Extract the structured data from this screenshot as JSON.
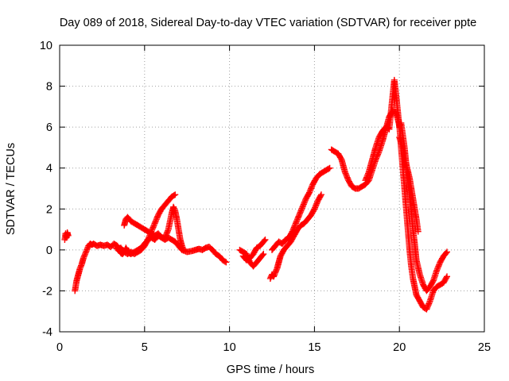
{
  "colors": {
    "series": "#ff0000",
    "grid": "#a0a0a0",
    "axis": "#000000",
    "background": "#ffffff"
  },
  "chart_data": {
    "type": "scatter",
    "title": "Day 089 of 2018, Sidereal Day-to-day VTEC variation (SDTVAR) for receiver ppte",
    "xlabel": "GPS time / hours",
    "ylabel": "SDTVAR / TECUs",
    "xlim": [
      0,
      25
    ],
    "ylim": [
      -4,
      10
    ],
    "xticks": [
      0,
      5,
      10,
      15,
      20,
      25
    ],
    "yticks": [
      -4,
      -2,
      0,
      2,
      4,
      6,
      8,
      10
    ],
    "grid": true,
    "marker": "plus",
    "series": [
      {
        "name": "SDTVAR",
        "segments": [
          [
            [
              0.3,
              0.5
            ],
            [
              0.35,
              0.8
            ],
            [
              0.4,
              0.6
            ],
            [
              0.45,
              0.85
            ],
            [
              0.5,
              0.7
            ]
          ],
          [
            [
              0.9,
              -2.0
            ],
            [
              1.0,
              -1.5
            ],
            [
              1.1,
              -1.2
            ],
            [
              1.2,
              -0.9
            ],
            [
              1.3,
              -0.7
            ],
            [
              1.4,
              -0.4
            ],
            [
              1.5,
              -0.2
            ],
            [
              1.6,
              0.0
            ],
            [
              1.7,
              0.2
            ],
            [
              1.8,
              0.3
            ],
            [
              1.9,
              0.25
            ],
            [
              2.0,
              0.3
            ],
            [
              2.2,
              0.2
            ],
            [
              2.4,
              0.25
            ],
            [
              2.6,
              0.2
            ],
            [
              2.8,
              0.25
            ],
            [
              3.0,
              0.15
            ],
            [
              3.2,
              0.3
            ],
            [
              3.4,
              0.2
            ],
            [
              3.5,
              0.0
            ],
            [
              3.6,
              -0.15
            ],
            [
              3.7,
              -0.2
            ],
            [
              3.8,
              -0.1
            ],
            [
              3.9,
              0.1
            ],
            [
              4.0,
              -0.05
            ],
            [
              4.1,
              -0.15
            ],
            [
              4.2,
              -0.2
            ],
            [
              4.4,
              -0.1
            ],
            [
              4.6,
              0.0
            ],
            [
              4.8,
              0.1
            ],
            [
              5.0,
              0.3
            ],
            [
              5.2,
              0.5
            ],
            [
              5.4,
              0.6
            ],
            [
              5.6,
              0.5
            ],
            [
              5.8,
              0.7
            ],
            [
              6.0,
              0.6
            ],
            [
              6.2,
              0.5
            ],
            [
              6.4,
              0.6
            ],
            [
              6.6,
              0.5
            ],
            [
              6.8,
              0.4
            ],
            [
              7.0,
              0.2
            ],
            [
              7.2,
              0.0
            ],
            [
              7.5,
              -0.1
            ],
            [
              7.8,
              -0.05
            ],
            [
              8.0,
              0.0
            ],
            [
              8.2,
              0.05
            ],
            [
              8.4,
              0.0
            ],
            [
              8.6,
              0.1
            ],
            [
              8.8,
              0.15
            ],
            [
              9.0,
              0.0
            ],
            [
              9.2,
              -0.2
            ],
            [
              9.4,
              -0.3
            ],
            [
              9.6,
              -0.5
            ],
            [
              9.8,
              -0.6
            ]
          ],
          [
            [
              3.3,
              0.1
            ],
            [
              3.4,
              0.05
            ],
            [
              3.6,
              0.1
            ],
            [
              3.8,
              -0.1
            ],
            [
              4.0,
              -0.2
            ],
            [
              4.2,
              -0.1
            ],
            [
              4.4,
              -0.2
            ],
            [
              4.6,
              -0.1
            ],
            [
              4.8,
              0.0
            ],
            [
              5.0,
              0.2
            ],
            [
              5.2,
              0.5
            ],
            [
              5.4,
              0.9
            ],
            [
              5.6,
              1.3
            ],
            [
              5.8,
              1.7
            ],
            [
              6.0,
              2.0
            ],
            [
              6.2,
              2.2
            ],
            [
              6.4,
              2.4
            ],
            [
              6.6,
              2.6
            ],
            [
              6.8,
              2.7
            ]
          ],
          [
            [
              3.8,
              1.2
            ],
            [
              3.9,
              1.5
            ],
            [
              4.0,
              1.6
            ],
            [
              4.2,
              1.4
            ],
            [
              4.4,
              1.3
            ],
            [
              4.6,
              1.2
            ],
            [
              4.8,
              1.1
            ],
            [
              5.0,
              1.0
            ],
            [
              5.2,
              0.9
            ],
            [
              5.4,
              0.8
            ],
            [
              5.6,
              0.7
            ],
            [
              5.8,
              0.8
            ],
            [
              6.0,
              0.6
            ],
            [
              6.2,
              0.6
            ],
            [
              6.4,
              1.0
            ],
            [
              6.6,
              1.8
            ],
            [
              6.7,
              2.1
            ],
            [
              6.8,
              1.9
            ],
            [
              6.9,
              1.5
            ],
            [
              7.0,
              1.0
            ],
            [
              7.1,
              0.5
            ],
            [
              7.2,
              0.2
            ],
            [
              7.3,
              0.0
            ]
          ],
          [
            [
              10.6,
              0.0
            ],
            [
              10.8,
              -0.1
            ],
            [
              11.0,
              -0.2
            ],
            [
              11.2,
              -0.6
            ],
            [
              11.4,
              -0.8
            ],
            [
              11.6,
              -0.6
            ],
            [
              11.8,
              -0.4
            ],
            [
              12.0,
              -0.2
            ]
          ],
          [
            [
              10.8,
              -0.3
            ],
            [
              11.0,
              -0.5
            ],
            [
              11.2,
              -0.4
            ],
            [
              11.4,
              -0.2
            ],
            [
              11.6,
              0.1
            ],
            [
              11.8,
              0.2
            ],
            [
              12.0,
              0.4
            ],
            [
              12.1,
              0.5
            ]
          ],
          [
            [
              12.4,
              -1.4
            ],
            [
              12.5,
              -1.2
            ],
            [
              12.6,
              -1.3
            ],
            [
              12.7,
              -1.1
            ],
            [
              12.8,
              -0.9
            ],
            [
              12.9,
              -0.6
            ],
            [
              13.0,
              -0.3
            ],
            [
              13.2,
              0.0
            ],
            [
              13.4,
              0.2
            ],
            [
              13.6,
              0.4
            ],
            [
              13.8,
              0.7
            ],
            [
              14.0,
              1.0
            ],
            [
              14.2,
              1.2
            ],
            [
              14.4,
              1.3
            ],
            [
              14.6,
              1.5
            ],
            [
              14.8,
              1.7
            ],
            [
              15.0,
              2.0
            ],
            [
              15.2,
              2.4
            ],
            [
              15.4,
              2.7
            ]
          ],
          [
            [
              12.5,
              0.0
            ],
            [
              12.7,
              0.2
            ],
            [
              12.9,
              0.4
            ],
            [
              13.1,
              0.3
            ],
            [
              13.3,
              0.5
            ],
            [
              13.5,
              0.6
            ],
            [
              13.7,
              0.9
            ],
            [
              13.9,
              1.3
            ],
            [
              14.1,
              1.7
            ],
            [
              14.3,
              2.1
            ],
            [
              14.5,
              2.5
            ],
            [
              14.7,
              2.8
            ],
            [
              14.9,
              3.2
            ],
            [
              15.1,
              3.5
            ],
            [
              15.3,
              3.7
            ],
            [
              15.5,
              3.8
            ],
            [
              15.7,
              3.9
            ],
            [
              15.9,
              4.0
            ]
          ],
          [
            [
              16.0,
              4.9
            ],
            [
              16.2,
              4.8
            ],
            [
              16.4,
              4.7
            ],
            [
              16.6,
              4.4
            ],
            [
              16.8,
              3.8
            ],
            [
              17.0,
              3.4
            ],
            [
              17.2,
              3.1
            ],
            [
              17.4,
              3.0
            ],
            [
              17.6,
              3.0
            ],
            [
              17.8,
              3.1
            ],
            [
              18.0,
              3.2
            ],
            [
              18.2,
              3.4
            ],
            [
              18.4,
              3.9
            ],
            [
              18.6,
              4.4
            ],
            [
              18.8,
              4.8
            ],
            [
              19.0,
              5.3
            ],
            [
              19.2,
              5.9
            ],
            [
              19.4,
              6.5
            ],
            [
              19.6,
              6.8
            ],
            [
              19.8,
              6.7
            ],
            [
              20.0,
              6.1
            ],
            [
              20.1,
              5.0
            ],
            [
              20.2,
              4.0
            ],
            [
              20.3,
              3.0
            ],
            [
              20.4,
              2.0
            ],
            [
              20.5,
              1.0
            ],
            [
              20.6,
              0.0
            ],
            [
              20.7,
              -0.8
            ],
            [
              20.8,
              -1.4
            ],
            [
              20.9,
              -1.8
            ],
            [
              21.0,
              -2.2
            ],
            [
              21.2,
              -2.5
            ],
            [
              21.4,
              -2.8
            ],
            [
              21.6,
              -2.9
            ],
            [
              21.8,
              -2.5
            ],
            [
              22.0,
              -2.0
            ],
            [
              22.2,
              -1.8
            ],
            [
              22.4,
              -1.7
            ],
            [
              22.6,
              -1.6
            ],
            [
              22.8,
              -1.3
            ]
          ],
          [
            [
              18.0,
              3.4
            ],
            [
              18.2,
              3.8
            ],
            [
              18.4,
              4.4
            ],
            [
              18.6,
              5.0
            ],
            [
              18.8,
              5.5
            ],
            [
              19.0,
              5.8
            ],
            [
              19.2,
              6.0
            ],
            [
              19.4,
              5.9
            ],
            [
              19.6,
              7.5
            ],
            [
              19.7,
              8.3
            ],
            [
              19.8,
              7.6
            ],
            [
              19.9,
              6.8
            ],
            [
              20.0,
              6.0
            ],
            [
              20.1,
              6.2
            ],
            [
              20.2,
              5.6
            ],
            [
              20.3,
              5.0
            ],
            [
              20.4,
              4.2
            ],
            [
              20.5,
              3.4
            ],
            [
              20.6,
              2.6
            ],
            [
              20.7,
              1.8
            ],
            [
              20.8,
              1.0
            ],
            [
              20.9,
              0.3
            ],
            [
              21.0,
              -0.5
            ],
            [
              21.2,
              -1.2
            ],
            [
              21.4,
              -1.7
            ],
            [
              21.6,
              -2.0
            ],
            [
              21.8,
              -1.8
            ],
            [
              22.0,
              -1.5
            ],
            [
              22.2,
              -1.0
            ],
            [
              22.4,
              -0.6
            ],
            [
              22.6,
              -0.3
            ],
            [
              22.8,
              -0.1
            ]
          ],
          [
            [
              20.0,
              5.5
            ],
            [
              20.2,
              5.0
            ],
            [
              20.4,
              4.2
            ],
            [
              20.6,
              3.5
            ],
            [
              20.8,
              2.5
            ],
            [
              21.0,
              1.5
            ],
            [
              21.1,
              0.9
            ]
          ]
        ]
      }
    ]
  }
}
